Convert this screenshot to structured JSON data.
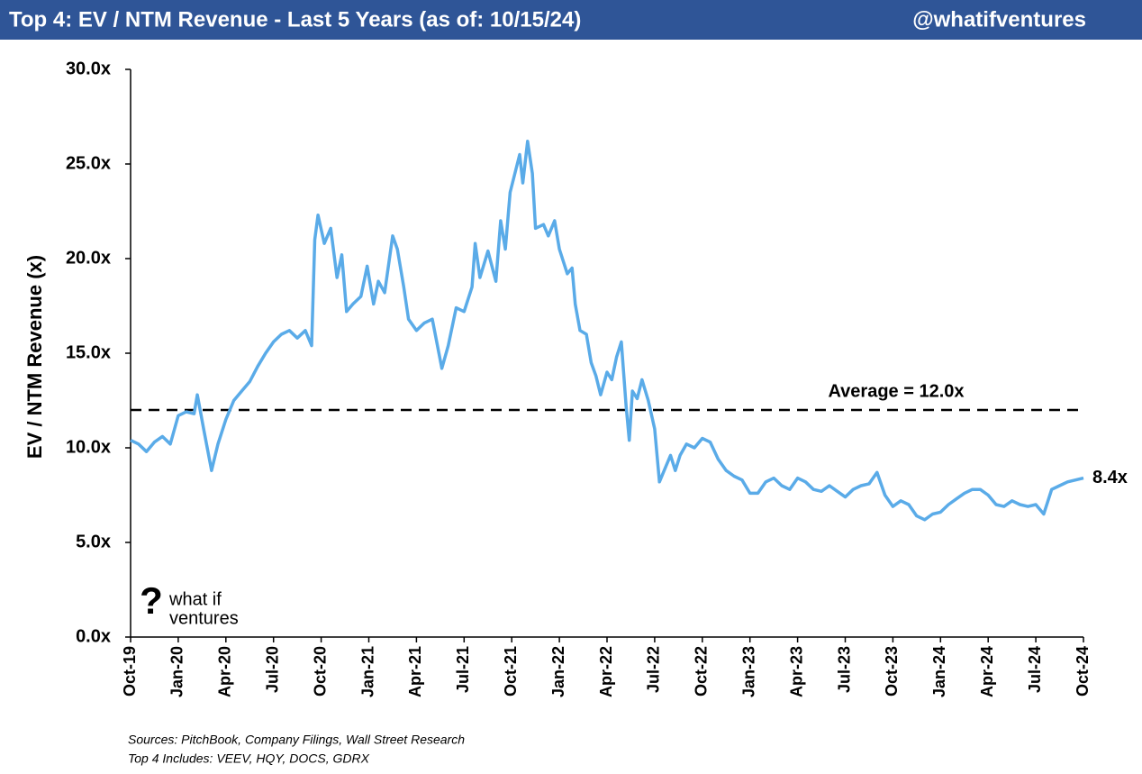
{
  "header": {
    "title": "Top 4: EV / NTM Revenue - Last 5 Years (as of: 10/15/24)",
    "handle": "@whatifventures"
  },
  "chart_data": {
    "type": "line",
    "y_label": "EV / NTM Revenue (x)",
    "xlim": [
      0,
      60
    ],
    "xticks": [
      {
        "value": 0,
        "label": "Oct-19"
      },
      {
        "value": 3,
        "label": "Jan-20"
      },
      {
        "value": 6,
        "label": "Apr-20"
      },
      {
        "value": 9,
        "label": "Jul-20"
      },
      {
        "value": 12,
        "label": "Oct-20"
      },
      {
        "value": 15,
        "label": "Jan-21"
      },
      {
        "value": 18,
        "label": "Apr-21"
      },
      {
        "value": 21,
        "label": "Jul-21"
      },
      {
        "value": 24,
        "label": "Oct-21"
      },
      {
        "value": 27,
        "label": "Jan-22"
      },
      {
        "value": 30,
        "label": "Apr-22"
      },
      {
        "value": 33,
        "label": "Jul-22"
      },
      {
        "value": 36,
        "label": "Oct-22"
      },
      {
        "value": 39,
        "label": "Jan-23"
      },
      {
        "value": 42,
        "label": "Apr-23"
      },
      {
        "value": 45,
        "label": "Jul-23"
      },
      {
        "value": 48,
        "label": "Oct-23"
      },
      {
        "value": 51,
        "label": "Jan-24"
      },
      {
        "value": 54,
        "label": "Apr-24"
      },
      {
        "value": 57,
        "label": "Jul-24"
      },
      {
        "value": 60,
        "label": "Oct-24"
      }
    ],
    "ylim": [
      0,
      30
    ],
    "yticks": [
      {
        "value": 0,
        "label": "0.0x"
      },
      {
        "value": 5,
        "label": "5.0x"
      },
      {
        "value": 10,
        "label": "10.0x"
      },
      {
        "value": 15,
        "label": "15.0x"
      },
      {
        "value": 20,
        "label": "20.0x"
      },
      {
        "value": 25,
        "label": "25.0x"
      },
      {
        "value": 30,
        "label": "30.0x"
      }
    ],
    "series": [
      {
        "name": "Top 4",
        "color": "#5aabe8",
        "x": [
          0,
          0.5,
          1,
          1.5,
          2,
          2.5,
          3,
          3.5,
          4,
          4.2,
          4.6,
          5.1,
          5.5,
          6,
          6.5,
          7,
          7.5,
          8,
          8.5,
          9,
          9.5,
          10,
          10.5,
          11,
          11.4,
          11.6,
          11.8,
          12.2,
          12.6,
          13,
          13.3,
          13.6,
          14,
          14.5,
          14.9,
          15.3,
          15.6,
          16,
          16.5,
          16.8,
          17.2,
          17.5,
          18,
          18.5,
          19,
          19.3,
          19.6,
          20,
          20.5,
          21,
          21.5,
          21.7,
          22,
          22.5,
          23,
          23.3,
          23.6,
          23.9,
          24.2,
          24.5,
          24.7,
          25,
          25.3,
          25.5,
          26,
          26.3,
          26.7,
          27,
          27.5,
          27.8,
          28,
          28.3,
          28.7,
          29,
          29.3,
          29.6,
          30,
          30.3,
          30.6,
          30.9,
          31.2,
          31.4,
          31.6,
          31.9,
          32.2,
          32.6,
          33,
          33.3,
          33.7,
          34,
          34.3,
          34.6,
          35,
          35.5,
          36,
          36.5,
          37,
          37.5,
          38,
          38.5,
          39,
          39.5,
          40,
          40.5,
          41,
          41.5,
          42,
          42.5,
          43,
          43.5,
          44,
          44.5,
          45,
          45.5,
          46,
          46.5,
          47,
          47.5,
          48,
          48.5,
          49,
          49.5,
          50,
          50.5,
          51,
          51.5,
          52,
          52.5,
          53,
          53.5,
          54,
          54.5,
          55,
          55.5,
          56,
          56.5,
          57,
          57.5,
          58,
          58.5,
          59,
          59.5,
          60
        ],
        "values": [
          10.4,
          10.2,
          9.8,
          10.3,
          10.6,
          10.2,
          11.7,
          11.9,
          11.8,
          12.8,
          11.0,
          8.8,
          10.2,
          11.5,
          12.5,
          13.0,
          13.5,
          14.3,
          15.0,
          15.6,
          16.0,
          16.2,
          15.8,
          16.2,
          15.4,
          21.0,
          22.3,
          20.8,
          21.6,
          19.0,
          20.2,
          17.2,
          17.6,
          18.0,
          19.6,
          17.6,
          18.8,
          18.2,
          21.2,
          20.5,
          18.5,
          16.8,
          16.2,
          16.6,
          16.8,
          15.5,
          14.2,
          15.4,
          17.4,
          17.2,
          18.5,
          20.8,
          19.0,
          20.4,
          18.8,
          22.0,
          20.5,
          23.5,
          24.5,
          25.5,
          24.0,
          26.2,
          24.5,
          21.6,
          21.8,
          21.2,
          22.0,
          20.5,
          19.2,
          19.5,
          17.6,
          16.2,
          16.0,
          14.5,
          13.8,
          12.8,
          14.0,
          13.6,
          14.8,
          15.6,
          12.2,
          10.4,
          13.0,
          12.6,
          13.6,
          12.5,
          11.0,
          8.2,
          9.0,
          9.6,
          8.8,
          9.6,
          10.2,
          10.0,
          10.5,
          10.3,
          9.4,
          8.8,
          8.5,
          8.3,
          7.6,
          7.6,
          8.2,
          8.4,
          8.0,
          7.8,
          8.4,
          8.2,
          7.8,
          7.7,
          8.0,
          7.7,
          7.4,
          7.8,
          8.0,
          8.1,
          8.7,
          7.5,
          6.9,
          7.2,
          7.0,
          6.4,
          6.2,
          6.5,
          6.6,
          7.0,
          7.3,
          7.6,
          7.8,
          7.8,
          7.5,
          7.0,
          6.9,
          7.2,
          7.0,
          6.9,
          7.0,
          6.5,
          7.8,
          8.0,
          8.2,
          8.3,
          8.4
        ],
        "end_label": "8.4x"
      }
    ],
    "average": {
      "value": 12.0,
      "label": "Average = 12.0x"
    }
  },
  "logo": {
    "mark": "?",
    "lines": [
      "what if",
      "ventures"
    ]
  },
  "footer": {
    "sources": "Sources: PitchBook, Company Filings, Wall Street Research",
    "note": "Top 4 Includes: VEEV, HQY, DOCS, GDRX"
  }
}
